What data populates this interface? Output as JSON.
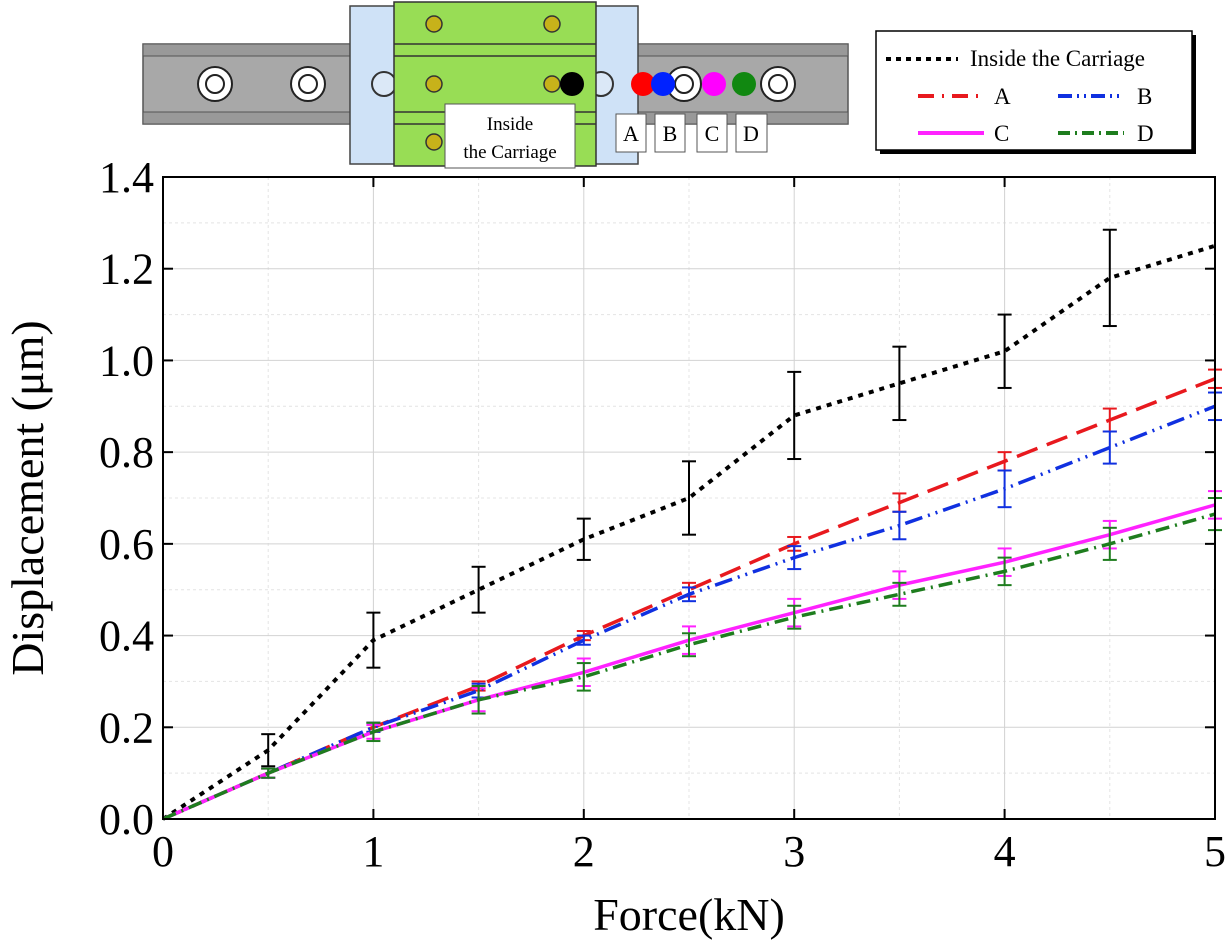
{
  "chart_data": {
    "type": "line",
    "xlabel": "Force(kN)",
    "ylabel": "Displacement (μm)",
    "xlim": [
      0,
      5
    ],
    "ylim": [
      0,
      1.4
    ],
    "x_ticks": [
      "0",
      "1",
      "2",
      "3",
      "4",
      "5"
    ],
    "y_ticks": [
      "0.0",
      "0.2",
      "0.4",
      "0.6",
      "0.8",
      "1.0",
      "1.2",
      "1.4"
    ],
    "grid": true,
    "legend_position": "top-right",
    "x": [
      0,
      0.5,
      1,
      1.5,
      2,
      2.5,
      3,
      3.5,
      4,
      4.5,
      5
    ],
    "series": [
      {
        "name": "Inside the Carriage",
        "color": "#000000",
        "style": "dotted",
        "values": [
          0,
          0.15,
          0.39,
          0.5,
          0.61,
          0.7,
          0.88,
          0.95,
          1.02,
          1.18,
          1.25
        ],
        "errors": [
          0,
          0.035,
          0.06,
          0.05,
          0.045,
          0.08,
          0.095,
          0.08,
          0.08,
          0.105,
          0.0
        ]
      },
      {
        "name": "A",
        "color": "#e8191e",
        "style": "longdash",
        "values": [
          0,
          0.1,
          0.2,
          0.29,
          0.4,
          0.5,
          0.6,
          0.69,
          0.78,
          0.87,
          0.96
        ],
        "errors": [
          0,
          0.01,
          0.01,
          0.01,
          0.01,
          0.015,
          0.015,
          0.02,
          0.02,
          0.025,
          0.02
        ]
      },
      {
        "name": "B",
        "color": "#1030e0",
        "style": "dashdot",
        "values": [
          0,
          0.1,
          0.2,
          0.28,
          0.39,
          0.49,
          0.57,
          0.64,
          0.72,
          0.81,
          0.9
        ],
        "errors": [
          0,
          0.01,
          0.01,
          0.015,
          0.01,
          0.015,
          0.025,
          0.03,
          0.04,
          0.035,
          0.03
        ]
      },
      {
        "name": "C",
        "color": "#ff22ff",
        "style": "solid",
        "values": [
          0,
          0.1,
          0.19,
          0.26,
          0.32,
          0.39,
          0.45,
          0.51,
          0.56,
          0.62,
          0.685
        ],
        "errors": [
          0,
          0.01,
          0.015,
          0.025,
          0.03,
          0.03,
          0.03,
          0.03,
          0.03,
          0.03,
          0.03
        ]
      },
      {
        "name": "D",
        "color": "#1e7d1e",
        "style": "dashdotdot",
        "values": [
          0,
          0.1,
          0.19,
          0.26,
          0.31,
          0.38,
          0.44,
          0.49,
          0.54,
          0.6,
          0.665
        ],
        "errors": [
          0,
          0.01,
          0.02,
          0.03,
          0.03,
          0.025,
          0.025,
          0.025,
          0.03,
          0.035,
          0.035
        ]
      }
    ]
  },
  "inset": {
    "carriage_label_line1": "Inside",
    "carriage_label_line2": "the Carriage",
    "point_labels": [
      "A",
      "B",
      "C",
      "D"
    ],
    "carriage_point_color": "#000000",
    "point_colors": [
      "#ff0000",
      "#0022ff",
      "#ff00ff",
      "#118811"
    ],
    "rail_color": "#a8a8a8",
    "block_color": "#98dd55",
    "endcap_color": "#cfe2f7",
    "bolt_color": "#c7b21a"
  }
}
